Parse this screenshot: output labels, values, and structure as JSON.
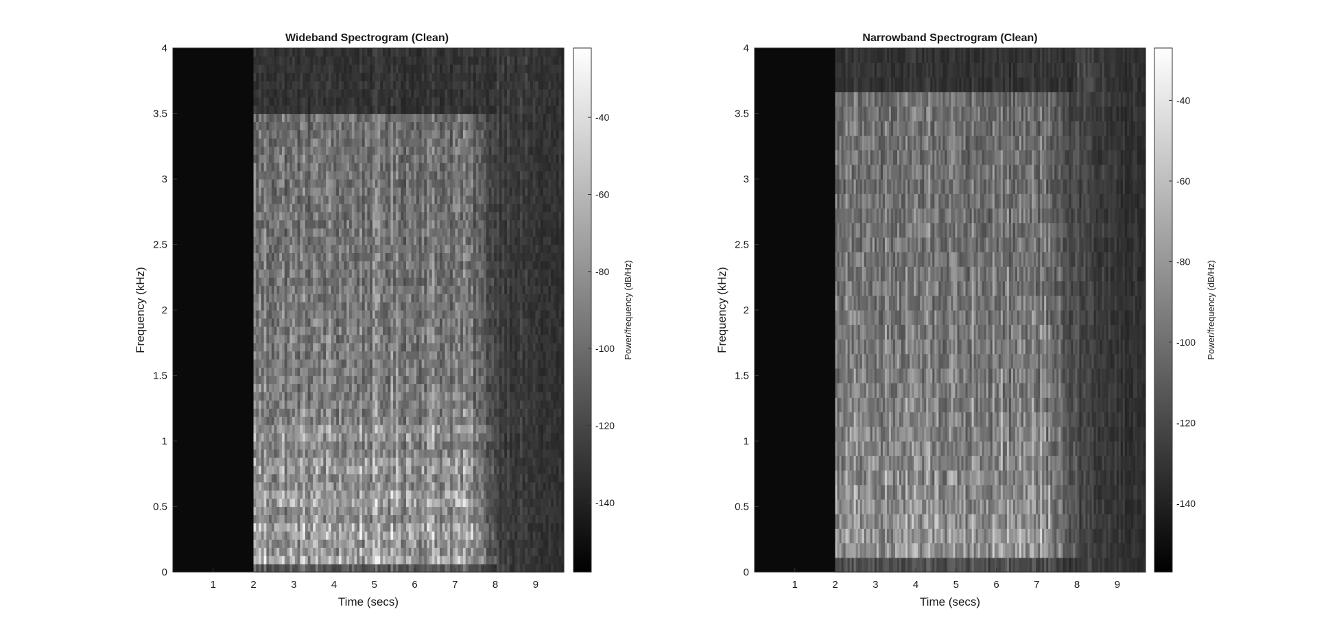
{
  "chart_data": [
    {
      "type": "heatmap",
      "title": "Wideband Spectrogram (Clean)",
      "xlabel": "Time (secs)",
      "ylabel": "Frequency (kHz)",
      "xlim": [
        0,
        9.7
      ],
      "ylim": [
        0,
        4
      ],
      "xticks": [
        1,
        2,
        3,
        4,
        5,
        6,
        7,
        8,
        9
      ],
      "yticks": [
        0,
        0.5,
        1,
        1.5,
        2,
        2.5,
        3,
        3.5,
        4
      ],
      "colorbar": {
        "label": "Power/frequency (dB/Hz)",
        "ticks": [
          -40,
          -60,
          -80,
          -100,
          -120,
          -140
        ],
        "range": [
          -158,
          -22
        ]
      },
      "colormap": "gray",
      "resolution": "wideband",
      "silence_until_sec": 2.0,
      "speech_interval_sec": [
        2.0,
        8.0
      ],
      "speech_bandwidth_khz": 3.5
    },
    {
      "type": "heatmap",
      "title": "Narrowband Spectrogram (Clean)",
      "xlabel": "Time (secs)",
      "ylabel": "Frequency (kHz)",
      "xlim": [
        0,
        9.7
      ],
      "ylim": [
        0,
        4
      ],
      "xticks": [
        1,
        2,
        3,
        4,
        5,
        6,
        7,
        8,
        9
      ],
      "yticks": [
        0,
        0.5,
        1,
        1.5,
        2,
        2.5,
        3,
        3.5,
        4
      ],
      "colorbar": {
        "label": "Power/frequency (dB/Hz)",
        "ticks": [
          -40,
          -60,
          -80,
          -100,
          -120,
          -140
        ],
        "range": [
          -157,
          -27
        ]
      },
      "colormap": "gray",
      "resolution": "narrowband",
      "silence_until_sec": 2.0,
      "speech_interval_sec": [
        2.0,
        8.0
      ],
      "speech_bandwidth_khz": 3.6
    }
  ]
}
